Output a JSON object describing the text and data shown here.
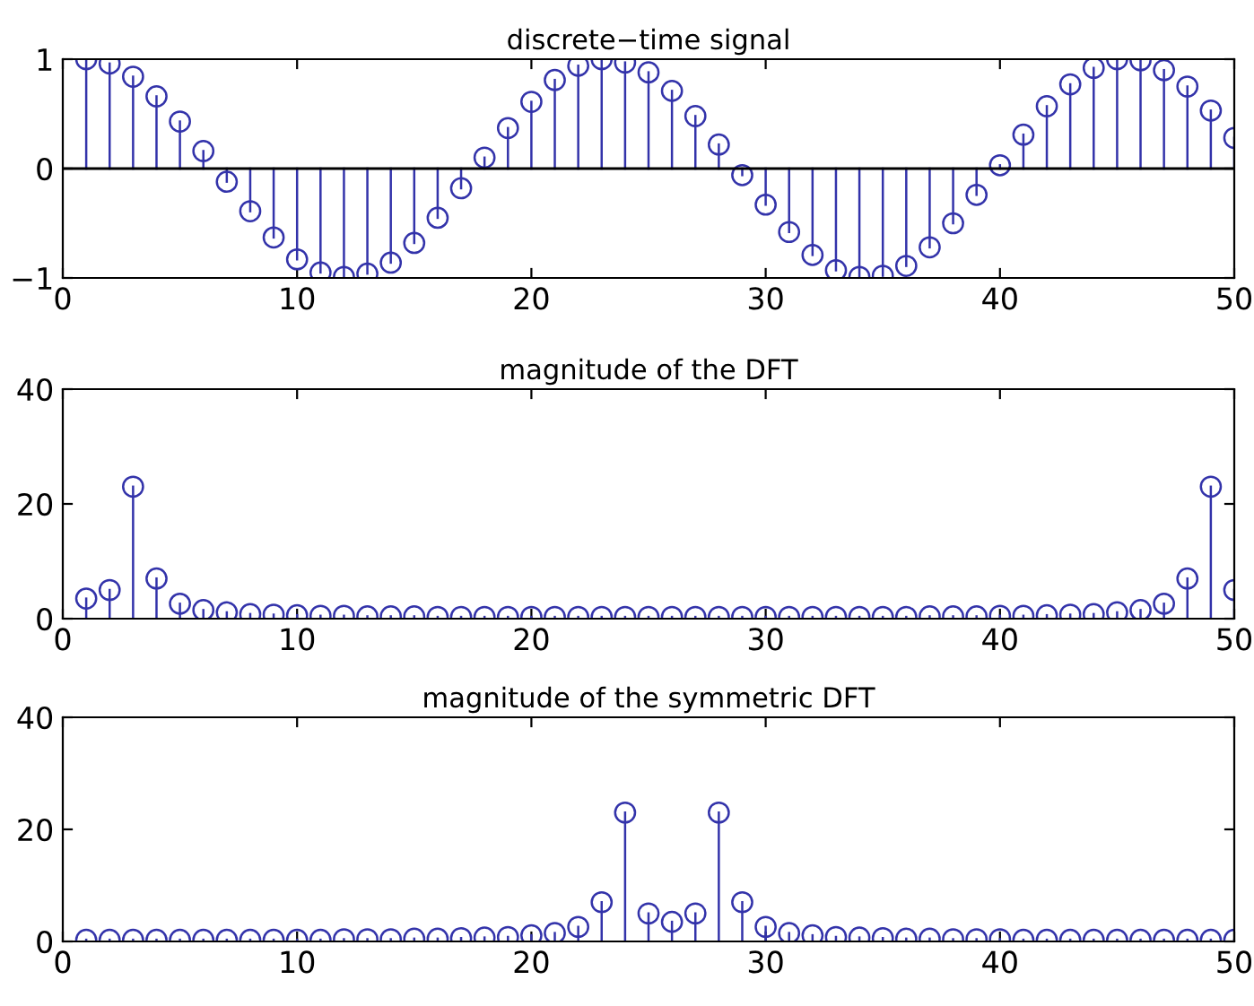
{
  "chart_data": [
    {
      "type": "lollipop",
      "title": "discrete−time signal",
      "x": [
        1,
        2,
        3,
        4,
        5,
        6,
        7,
        8,
        9,
        10,
        11,
        12,
        13,
        14,
        15,
        16,
        17,
        18,
        19,
        20,
        21,
        22,
        23,
        24,
        25,
        26,
        27,
        28,
        29,
        30,
        31,
        32,
        33,
        34,
        35,
        36,
        37,
        38,
        39,
        40,
        41,
        42,
        43,
        44,
        45,
        46,
        47,
        48,
        49,
        50
      ],
      "values": [
        1.0,
        0.96,
        0.84,
        0.66,
        0.43,
        0.16,
        -0.12,
        -0.39,
        -0.63,
        -0.83,
        -0.95,
        -0.99,
        -0.96,
        -0.86,
        -0.68,
        -0.45,
        -0.18,
        0.1,
        0.37,
        0.61,
        0.81,
        0.94,
        1.0,
        0.97,
        0.88,
        0.71,
        0.48,
        0.22,
        -0.06,
        -0.33,
        -0.58,
        -0.79,
        -0.93,
        -0.99,
        -0.98,
        -0.89,
        -0.72,
        -0.5,
        -0.24,
        0.03,
        0.31,
        0.57,
        0.77,
        0.92,
        1.0,
        0.99,
        0.9,
        0.75,
        0.53,
        0.28
      ],
      "color": "#3333aa",
      "marker": "circle",
      "ref_lines": [
        {
          "axis": "y",
          "value": 0,
          "color": "#000000"
        }
      ],
      "xlim": [
        0,
        50
      ],
      "xticks": [
        0,
        10,
        20,
        30,
        40,
        50
      ],
      "ylim": [
        -1,
        1
      ],
      "yticks": [
        {
          "value": -1,
          "label": "−1"
        },
        0,
        1
      ],
      "grid": false,
      "legend": false
    },
    {
      "type": "lollipop",
      "title": "magnitude of the DFT",
      "x": [
        1,
        2,
        3,
        4,
        5,
        6,
        7,
        8,
        9,
        10,
        11,
        12,
        13,
        14,
        15,
        16,
        17,
        18,
        19,
        20,
        21,
        22,
        23,
        24,
        25,
        26,
        27,
        28,
        29,
        30,
        31,
        32,
        33,
        34,
        35,
        36,
        37,
        38,
        39,
        40,
        41,
        42,
        43,
        44,
        45,
        46,
        47,
        48,
        49,
        50
      ],
      "values": [
        3.5,
        5,
        23,
        7,
        2.6,
        1.5,
        1.1,
        0.8,
        0.7,
        0.6,
        0.5,
        0.5,
        0.4,
        0.4,
        0.4,
        0.3,
        0.3,
        0.3,
        0.3,
        0.3,
        0.3,
        0.3,
        0.3,
        0.3,
        0.3,
        0.3,
        0.3,
        0.3,
        0.3,
        0.3,
        0.3,
        0.3,
        0.3,
        0.3,
        0.3,
        0.3,
        0.4,
        0.4,
        0.4,
        0.5,
        0.5,
        0.6,
        0.7,
        0.8,
        1.1,
        1.5,
        2.6,
        7,
        23,
        5
      ],
      "color": "#3333aa",
      "marker": "circle",
      "xlim": [
        0,
        50
      ],
      "xticks": [
        0,
        10,
        20,
        30,
        40,
        50
      ],
      "ylim": [
        0,
        40
      ],
      "yticks": [
        0,
        20,
        40
      ],
      "grid": false,
      "legend": false
    },
    {
      "type": "lollipop",
      "title": "magnitude of the symmetric DFT",
      "x": [
        1,
        2,
        3,
        4,
        5,
        6,
        7,
        8,
        9,
        10,
        11,
        12,
        13,
        14,
        15,
        16,
        17,
        18,
        19,
        20,
        21,
        22,
        23,
        24,
        25,
        26,
        27,
        28,
        29,
        30,
        31,
        32,
        33,
        34,
        35,
        36,
        37,
        38,
        39,
        40,
        41,
        42,
        43,
        44,
        45,
        46,
        47,
        48,
        49,
        50
      ],
      "values": [
        0.3,
        0.3,
        0.3,
        0.3,
        0.3,
        0.3,
        0.3,
        0.3,
        0.3,
        0.3,
        0.3,
        0.4,
        0.4,
        0.4,
        0.5,
        0.5,
        0.6,
        0.7,
        0.8,
        1.1,
        1.5,
        2.6,
        7,
        23,
        5,
        3.5,
        5,
        23,
        7,
        2.6,
        1.5,
        1.1,
        0.8,
        0.7,
        0.6,
        0.5,
        0.5,
        0.4,
        0.4,
        0.4,
        0.3,
        0.3,
        0.3,
        0.3,
        0.3,
        0.3,
        0.3,
        0.3,
        0.3,
        0.3
      ],
      "color": "#3333aa",
      "marker": "circle",
      "xlim": [
        0,
        50
      ],
      "xticks": [
        0,
        10,
        20,
        30,
        40,
        50
      ],
      "ylim": [
        0,
        40
      ],
      "yticks": [
        0,
        20,
        40
      ],
      "grid": false,
      "legend": false
    }
  ]
}
